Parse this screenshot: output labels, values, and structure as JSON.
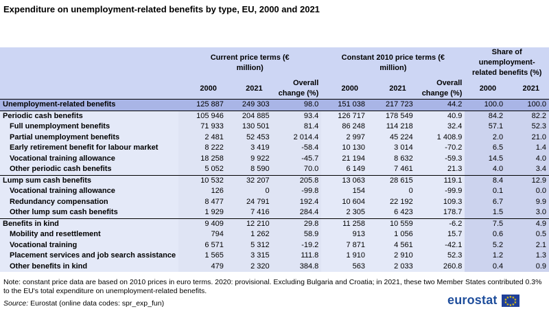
{
  "title": "Expenditure on unemployment-related benefits by type, EU, 2000 and 2021",
  "header": {
    "group1": "Current price terms (€ million)",
    "group2": "Constant 2010 price terms (€ million)",
    "group3": "Share of unemployment-related benefits (%)",
    "cols": [
      "2000",
      "2021",
      "Overall change (%)",
      "2000",
      "2021",
      "Overall change (%)",
      "2000",
      "2021"
    ]
  },
  "rows": [
    {
      "label": "Unemployment-related benefits",
      "level": "total",
      "values": [
        "125 887",
        "249 303",
        "98.0",
        "151 038",
        "217 723",
        "44.2",
        "100.0",
        "100.0"
      ]
    },
    {
      "label": "Periodic cash benefits",
      "level": "group",
      "values": [
        "105 946",
        "204 885",
        "93.4",
        "126 717",
        "178 549",
        "40.9",
        "84.2",
        "82.2"
      ]
    },
    {
      "label": "Full unemployment benefits",
      "level": "sub",
      "values": [
        "71 933",
        "130 501",
        "81.4",
        "86 248",
        "114 218",
        "32.4",
        "57.1",
        "52.3"
      ]
    },
    {
      "label": "Partial unemployment benefits",
      "level": "sub",
      "values": [
        "2 481",
        "52 453",
        "2 014.4",
        "2 997",
        "45 224",
        "1 408.9",
        "2.0",
        "21.0"
      ]
    },
    {
      "label": "Early retirement benefit for labour market",
      "level": "sub",
      "values": [
        "8 222",
        "3 419",
        "-58.4",
        "10 130",
        "3 014",
        "-70.2",
        "6.5",
        "1.4"
      ]
    },
    {
      "label": "Vocational training allowance",
      "level": "sub",
      "values": [
        "18 258",
        "9 922",
        "-45.7",
        "21 194",
        "8 632",
        "-59.3",
        "14.5",
        "4.0"
      ]
    },
    {
      "label": "Other periodic cash benefits",
      "level": "sub",
      "values": [
        "5 052",
        "8 590",
        "70.0",
        "6 149",
        "7 461",
        "21.3",
        "4.0",
        "3.4"
      ]
    },
    {
      "label": "Lump sum cash benefits",
      "level": "group",
      "values": [
        "10 532",
        "32 207",
        "205.8",
        "13 063",
        "28 615",
        "119.1",
        "8.4",
        "12.9"
      ]
    },
    {
      "label": "Vocational training allowance",
      "level": "sub",
      "values": [
        "126",
        "0",
        "-99.8",
        "154",
        "0",
        "-99.9",
        "0.1",
        "0.0"
      ]
    },
    {
      "label": "Redundancy compensation",
      "level": "sub",
      "values": [
        "8 477",
        "24 791",
        "192.4",
        "10 604",
        "22 192",
        "109.3",
        "6.7",
        "9.9"
      ]
    },
    {
      "label": "Other lump sum cash benefits",
      "level": "sub",
      "values": [
        "1 929",
        "7 416",
        "284.4",
        "2 305",
        "6 423",
        "178.7",
        "1.5",
        "3.0"
      ]
    },
    {
      "label": "Benefits in kind",
      "level": "group",
      "values": [
        "9 409",
        "12 210",
        "29.8",
        "11 258",
        "10 559",
        "-6.2",
        "7.5",
        "4.9"
      ]
    },
    {
      "label": "Mobility and resettlement",
      "level": "sub",
      "values": [
        "794",
        "1 262",
        "58.9",
        "913",
        "1 056",
        "15.7",
        "0.6",
        "0.5"
      ]
    },
    {
      "label": "Vocational training",
      "level": "sub",
      "values": [
        "6 571",
        "5 312",
        "-19.2",
        "7 871",
        "4 561",
        "-42.1",
        "5.2",
        "2.1"
      ]
    },
    {
      "label": "Placement services and job search assistance",
      "level": "sub",
      "values": [
        "1 565",
        "3 315",
        "111.8",
        "1 910",
        "2 910",
        "52.3",
        "1.2",
        "1.3"
      ]
    },
    {
      "label": "Other benefits in kind",
      "level": "sub",
      "values": [
        "479",
        "2 320",
        "384.8",
        "563",
        "2 033",
        "260.8",
        "0.4",
        "0.9"
      ]
    }
  ],
  "note": "Note: constant price data are based on 2010 prices in euro terms. 2020: provisional. Excluding Bulgaria and Croatia; in 2021, these two Member States contributed 0.3% to the EU's total expenditure on unemployment-related benefits.",
  "source_label": "Source:",
  "source_text": "Eurostat (online data codes: spr_exp_fun)",
  "logo": "eurostat",
  "colors": {
    "header": "#cdd6f4",
    "total": "#a9b5e6",
    "logo": "#1f4e9c"
  }
}
